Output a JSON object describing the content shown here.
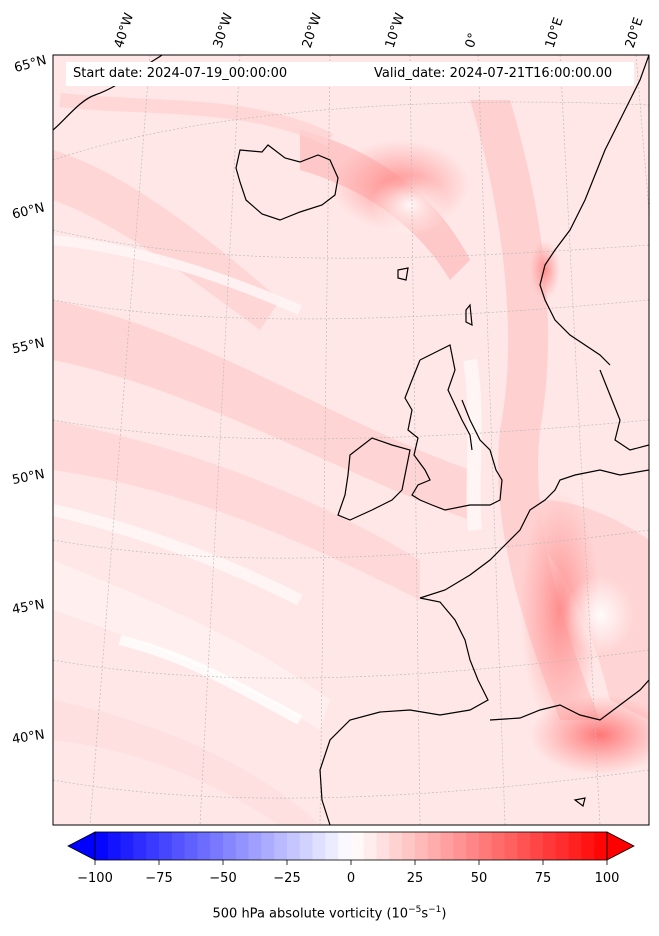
{
  "header": {
    "start_date": "Start date: 2024-07-19_00:00:00",
    "valid_date": "Valid_date: 2024-07-21T16:00:00.00"
  },
  "map": {
    "longitude_labels": [
      "40°W",
      "30°W",
      "20°W",
      "10°W",
      "0°",
      "10°E",
      "20°E"
    ],
    "latitude_labels": [
      "65°N",
      "60°N",
      "55°N",
      "50°N",
      "45°N",
      "40°N"
    ],
    "field": "500 hPa absolute vorticity",
    "background_color": "#ffe7e7",
    "coastline_color": "#000000",
    "gridline_color": "#bbbbbb"
  },
  "colorbar": {
    "ticks": [
      "−100",
      "−75",
      "−50",
      "−25",
      "0",
      "25",
      "50",
      "75",
      "100"
    ],
    "tick_values": [
      -100,
      -75,
      -50,
      -25,
      0,
      25,
      50,
      75,
      100
    ],
    "min": -100,
    "max": 100,
    "low_color": "#0000ff",
    "mid_color": "#ffffff",
    "high_color": "#ff0000",
    "label_main": "500 hPa absolute vorticity (10",
    "label_sup1": "−5",
    "label_mid": "s",
    "label_sup2": "−1",
    "label_end": ")"
  }
}
